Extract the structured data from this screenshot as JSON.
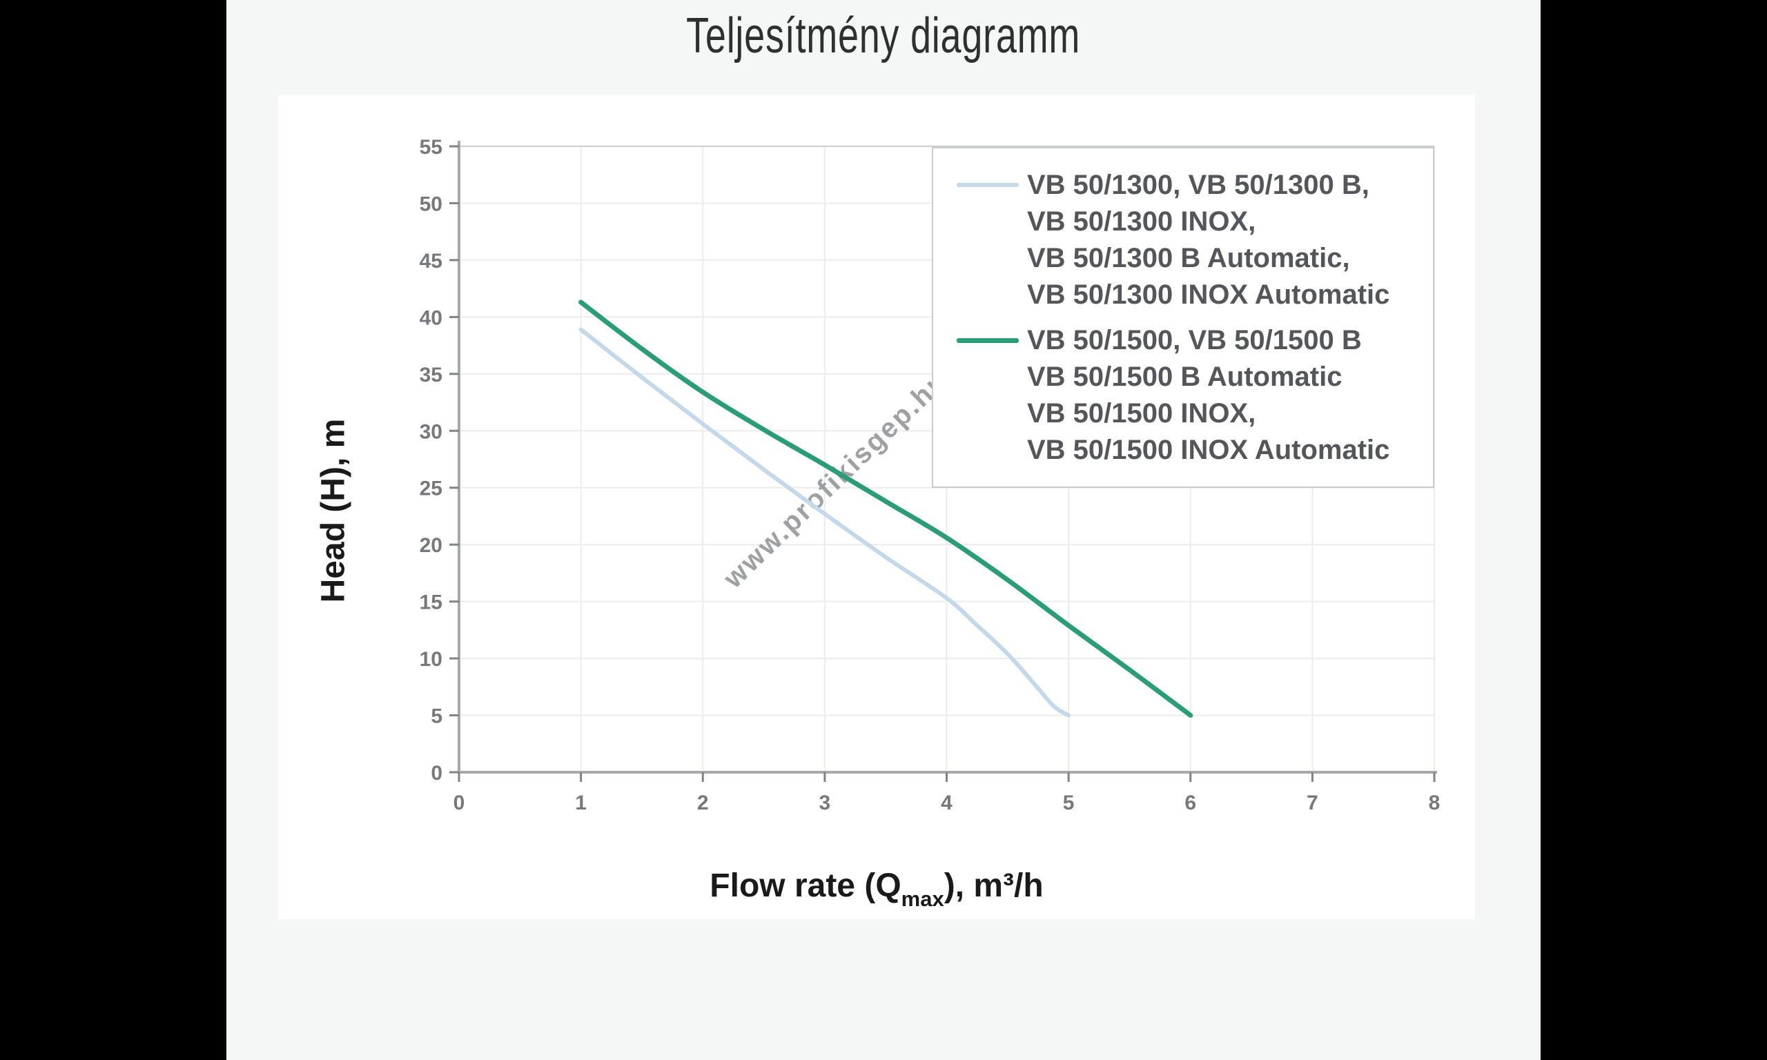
{
  "page": {
    "title": "Teljesítmény diagramm",
    "background_color": "#f5f6f6",
    "side_bar_color": "#000000",
    "card_color": "#ffffff"
  },
  "chart_data": {
    "type": "line",
    "title": "Teljesítmény diagramm",
    "xlabel": {
      "prefix": "Flow rate (Q",
      "sub": "max",
      "suffix": "), m³/h"
    },
    "ylabel": "Head (H), m",
    "xlim": [
      0,
      8
    ],
    "ylim": [
      0,
      55
    ],
    "xticks": [
      0,
      1,
      2,
      3,
      4,
      5,
      6,
      7,
      8
    ],
    "yticks": [
      0,
      5,
      10,
      15,
      20,
      25,
      30,
      35,
      40,
      45,
      50,
      55
    ],
    "grid": true,
    "legend_position": "top-right",
    "watermark": "www.profikisgep.hu",
    "colors": {
      "grid": "#ececed",
      "grid_top": "#cccdce",
      "axis": "#a6a8ab",
      "tick": "#808285",
      "tick_label": "#77787b",
      "legend_text": "#55565a",
      "legend_border": "#c9cbcc",
      "title_text": "#2f2f2f",
      "axis_title_text": "#1a1a1a",
      "watermark_text": "#96989a"
    },
    "series": [
      {
        "label_lines": [
          "VB 50/1300, VB 50/1300 B,",
          "VB 50/1300 INOX,",
          "VB 50/1300 B Automatic,",
          "VB 50/1300 INOX Automatic"
        ],
        "color": "#c3d8e9",
        "stroke_width": 6,
        "points": [
          [
            1,
            38.9
          ],
          [
            1.5,
            34.7
          ],
          [
            2,
            30.6
          ],
          [
            2.5,
            26.6
          ],
          [
            3,
            22.7
          ],
          [
            3.5,
            18.9
          ],
          [
            4,
            15.3
          ],
          [
            4.25,
            12.9
          ],
          [
            4.5,
            10.4
          ],
          [
            4.7,
            8.0
          ],
          [
            4.88,
            5.8
          ],
          [
            5,
            5
          ]
        ]
      },
      {
        "label_lines": [
          "VB 50/1500, VB 50/1500 B",
          "VB 50/1500 B Automatic",
          "VB 50/1500 INOX,",
          "VB 50/1500 INOX Automatic"
        ],
        "color": "#2a9d78",
        "stroke_width": 7,
        "points": [
          [
            1,
            41.3
          ],
          [
            1.5,
            37.2
          ],
          [
            2,
            33.4
          ],
          [
            2.5,
            30.1
          ],
          [
            3,
            27.0
          ],
          [
            3.5,
            23.8
          ],
          [
            4,
            20.6
          ],
          [
            4.5,
            16.9
          ],
          [
            5,
            12.9
          ],
          [
            5.5,
            9.0
          ],
          [
            6,
            5
          ]
        ]
      }
    ]
  }
}
